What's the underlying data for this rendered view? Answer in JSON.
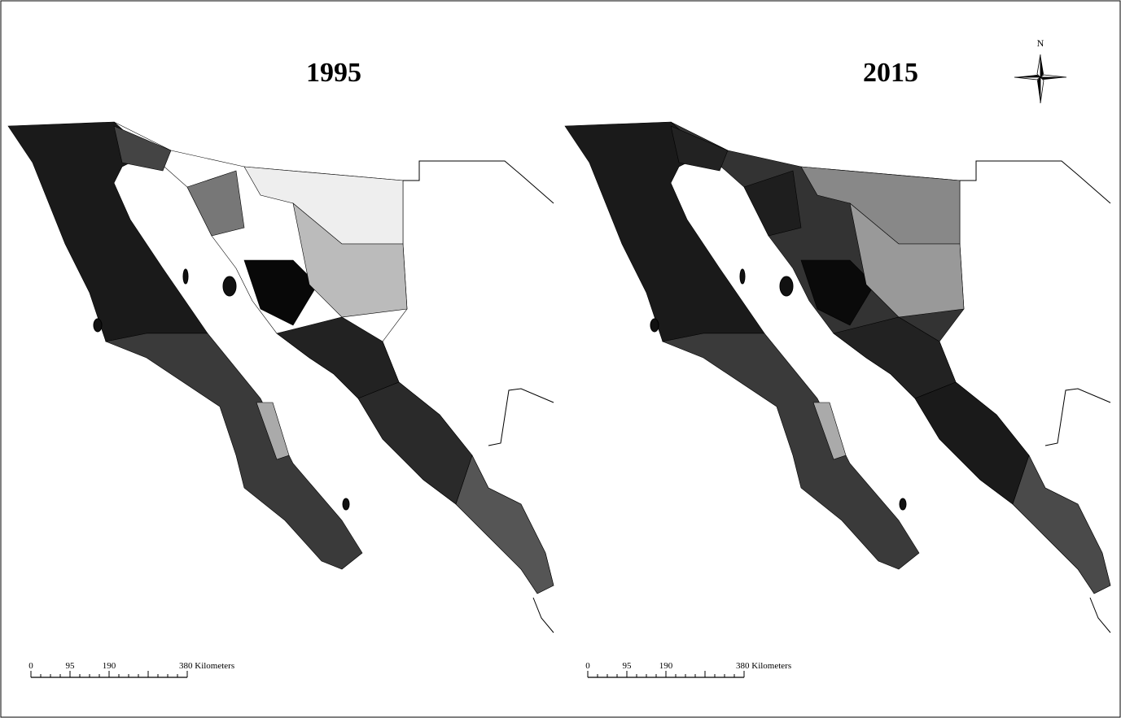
{
  "maps": [
    {
      "title": "1995",
      "scale_labels": [
        "0",
        "95",
        "190",
        "380 Kilometers"
      ]
    },
    {
      "title": "2015",
      "scale_labels": [
        "0",
        "95",
        "190",
        "380 Kilometers"
      ]
    }
  ],
  "compass": "N"
}
